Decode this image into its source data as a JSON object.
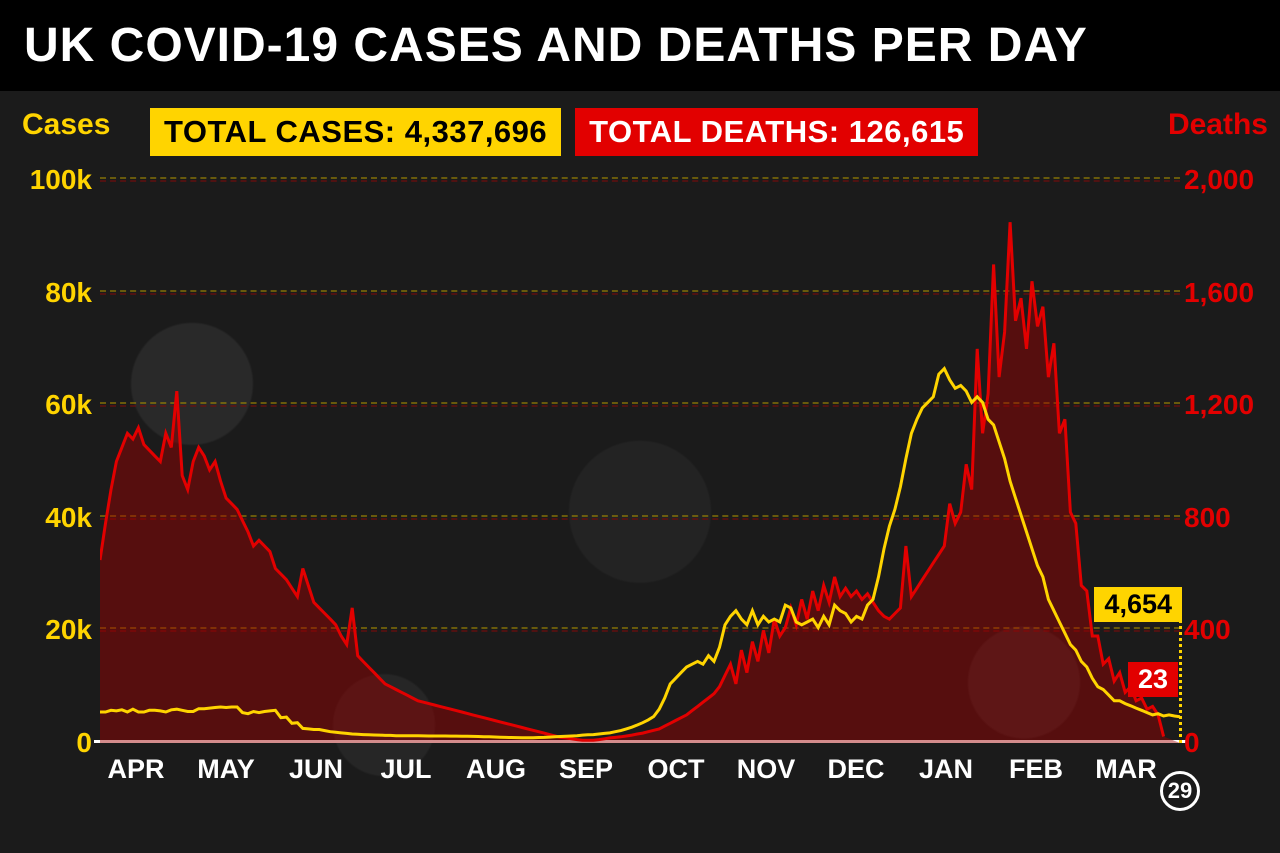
{
  "title": "UK COVID-19 CASES AND DEATHS PER DAY",
  "badges": {
    "cases": {
      "label": "TOTAL CASES: 4,337,696",
      "bg": "#ffd400",
      "fg": "#000000"
    },
    "deaths": {
      "label": "TOTAL DEATHS: 126,615",
      "bg": "#e20000",
      "fg": "#ffffff"
    }
  },
  "axis_left": {
    "label": "Cases",
    "color": "#ffd400",
    "min": 0,
    "max": 100000,
    "ticks": [
      0,
      20000,
      40000,
      60000,
      80000,
      100000
    ],
    "tick_labels": [
      "0",
      "20k",
      "40k",
      "60k",
      "80k",
      "100k"
    ]
  },
  "axis_right": {
    "label": "Deaths",
    "color": "#e20000",
    "min": 0,
    "max": 2000,
    "ticks": [
      0,
      400,
      800,
      1200,
      1600,
      2000
    ],
    "tick_labels": [
      "0",
      "400",
      "800",
      "1,200",
      "1,600",
      "2,000"
    ]
  },
  "x_labels": [
    "APR",
    "MAY",
    "JUN",
    "JUL",
    "AUG",
    "SEP",
    "OCT",
    "NOV",
    "DEC",
    "JAN",
    "FEB",
    "MAR"
  ],
  "end_marker": "29",
  "end_labels": {
    "cases": {
      "text": "4,654",
      "value": 4654,
      "bg": "#ffd400",
      "fg": "#000000"
    },
    "deaths": {
      "text": "23",
      "value": 23,
      "bg": "#e20000",
      "fg": "#ffffff"
    }
  },
  "colors": {
    "cases_line": "#ffd400",
    "deaths_line": "#e20000",
    "deaths_fill": "rgba(160,0,0,0.45)",
    "background": "#1a1a1a",
    "grid_cases": "#a88f00",
    "grid_deaths": "#7a0b0b",
    "text": "#ffffff"
  },
  "line_width": 3,
  "series": {
    "cases": [
      5500,
      5500,
      5800,
      5700,
      5900,
      5500,
      6000,
      5500,
      5500,
      5800,
      5800,
      5700,
      5500,
      5900,
      6000,
      5800,
      5600,
      5600,
      6100,
      6100,
      6200,
      6300,
      6400,
      6300,
      6400,
      6400,
      5400,
      5200,
      5600,
      5400,
      5600,
      5700,
      5800,
      4500,
      4600,
      3500,
      3600,
      2600,
      2500,
      2400,
      2400,
      2200,
      2000,
      1900,
      1800,
      1700,
      1600,
      1550,
      1500,
      1450,
      1420,
      1400,
      1350,
      1350,
      1300,
      1300,
      1280,
      1280,
      1270,
      1260,
      1250,
      1250,
      1240,
      1240,
      1230,
      1220,
      1210,
      1200,
      1180,
      1150,
      1120,
      1100,
      1060,
      1030,
      1000,
      980,
      960,
      950,
      950,
      950,
      980,
      1000,
      1050,
      1100,
      1150,
      1200,
      1250,
      1300,
      1400,
      1450,
      1500,
      1600,
      1700,
      1800,
      2000,
      2200,
      2500,
      2800,
      3200,
      3600,
      4100,
      4700,
      6000,
      8000,
      10500,
      11500,
      12500,
      13500,
      14000,
      14500,
      14000,
      15500,
      14500,
      17000,
      21000,
      22500,
      23500,
      22000,
      21000,
      23500,
      21000,
      22500,
      21500,
      22000,
      21500,
      24500,
      24000,
      21500,
      21000,
      21500,
      22000,
      20500,
      22500,
      21000,
      24500,
      23500,
      23000,
      21500,
      22500,
      22000,
      24500,
      25500,
      29500,
      34500,
      38500,
      41500,
      45500,
      50500,
      55000,
      57500,
      59500,
      60500,
      61500,
      65500,
      66500,
      64500,
      63000,
      63500,
      62500,
      60500,
      61500,
      60500,
      57500,
      56500,
      53500,
      50500,
      46500,
      43500,
      40500,
      37500,
      34500,
      31500,
      29500,
      25500,
      23500,
      21500,
      19500,
      17500,
      16500,
      14500,
      13500,
      11500,
      10000,
      9500,
      8500,
      7500,
      7500,
      7000,
      6600,
      6200,
      5800,
      5400,
      5000,
      5200,
      4800,
      5000,
      4800,
      4654
    ],
    "deaths": [
      650,
      780,
      900,
      1000,
      1050,
      1100,
      1080,
      1120,
      1060,
      1040,
      1020,
      1000,
      1100,
      1050,
      1250,
      950,
      900,
      1000,
      1050,
      1020,
      970,
      1000,
      930,
      870,
      850,
      830,
      790,
      750,
      700,
      720,
      700,
      680,
      620,
      600,
      580,
      550,
      520,
      620,
      560,
      500,
      480,
      460,
      440,
      420,
      380,
      350,
      480,
      310,
      290,
      270,
      250,
      230,
      210,
      200,
      190,
      180,
      170,
      160,
      150,
      145,
      140,
      135,
      130,
      125,
      120,
      115,
      110,
      105,
      100,
      95,
      90,
      85,
      80,
      75,
      70,
      65,
      60,
      55,
      50,
      45,
      40,
      35,
      30,
      25,
      20,
      18,
      15,
      12,
      10,
      10,
      10,
      12,
      15,
      18,
      20,
      22,
      25,
      28,
      32,
      35,
      40,
      45,
      50,
      60,
      70,
      80,
      90,
      100,
      115,
      130,
      145,
      160,
      175,
      200,
      240,
      280,
      210,
      330,
      250,
      360,
      290,
      400,
      320,
      440,
      380,
      410,
      480,
      420,
      510,
      440,
      540,
      470,
      560,
      500,
      590,
      520,
      550,
      520,
      540,
      510,
      530,
      500,
      470,
      450,
      440,
      460,
      480,
      700,
      520,
      550,
      580,
      610,
      640,
      670,
      700,
      850,
      780,
      820,
      990,
      900,
      1400,
      1100,
      1240,
      1700,
      1300,
      1460,
      1850,
      1500,
      1580,
      1400,
      1640,
      1480,
      1550,
      1300,
      1420,
      1100,
      1150,
      820,
      780,
      560,
      540,
      380,
      380,
      280,
      300,
      220,
      250,
      180,
      200,
      150,
      160,
      120,
      130,
      100,
      23
    ]
  }
}
